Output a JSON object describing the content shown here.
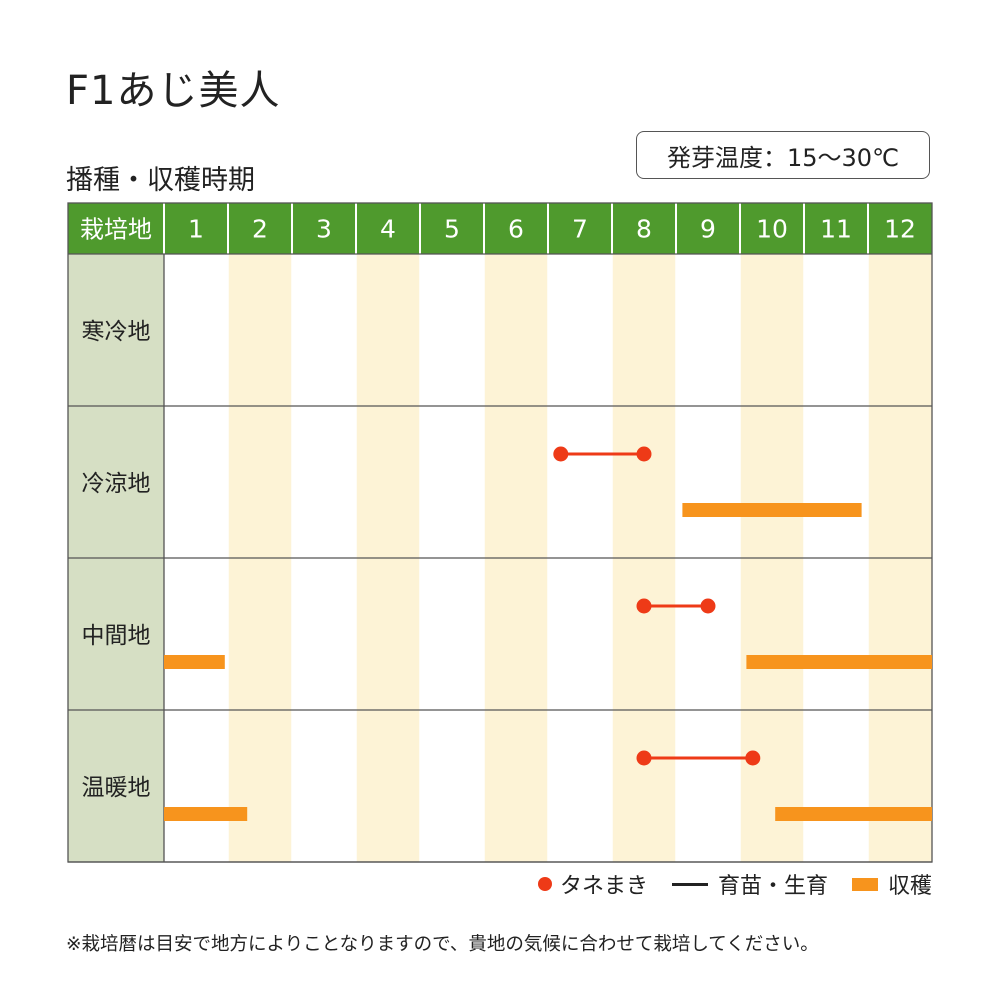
{
  "title": "F1あじ美人",
  "subtitle": "播種・収穫時期",
  "germination": "発芽温度：15〜30℃",
  "colors": {
    "header_green": "#4f9a2d",
    "region_column": "#d6dfc4",
    "stripe": "#fdf3d6",
    "sowing": "#ee3a17",
    "harvest": "#f7941d",
    "grid": "#555555"
  },
  "chart_data": {
    "type": "table",
    "header_label": "栽培地",
    "months": [
      "1",
      "2",
      "3",
      "4",
      "5",
      "6",
      "7",
      "8",
      "9",
      "10",
      "11",
      "12"
    ],
    "regions": [
      {
        "name": "寒冷地",
        "sowing": [],
        "harvest": []
      },
      {
        "name": "冷涼地",
        "sowing": [
          [
            7.2,
            8.5
          ]
        ],
        "harvest": [
          [
            9.1,
            11.9
          ]
        ]
      },
      {
        "name": "中間地",
        "sowing": [
          [
            8.5,
            9.5
          ]
        ],
        "harvest": [
          [
            1.0,
            1.95
          ],
          [
            10.1,
            13.0
          ]
        ]
      },
      {
        "name": "温暖地",
        "sowing": [
          [
            8.5,
            10.2
          ]
        ],
        "harvest": [
          [
            1.0,
            2.3
          ],
          [
            10.55,
            13.0
          ]
        ]
      }
    ]
  },
  "legend": {
    "sowing": "タネまき",
    "seedling": "育苗・生育",
    "harvest": "収穫"
  },
  "note": "※栽培暦は目安で地方によりことなりますので、貴地の気候に合わせて栽培してください。"
}
